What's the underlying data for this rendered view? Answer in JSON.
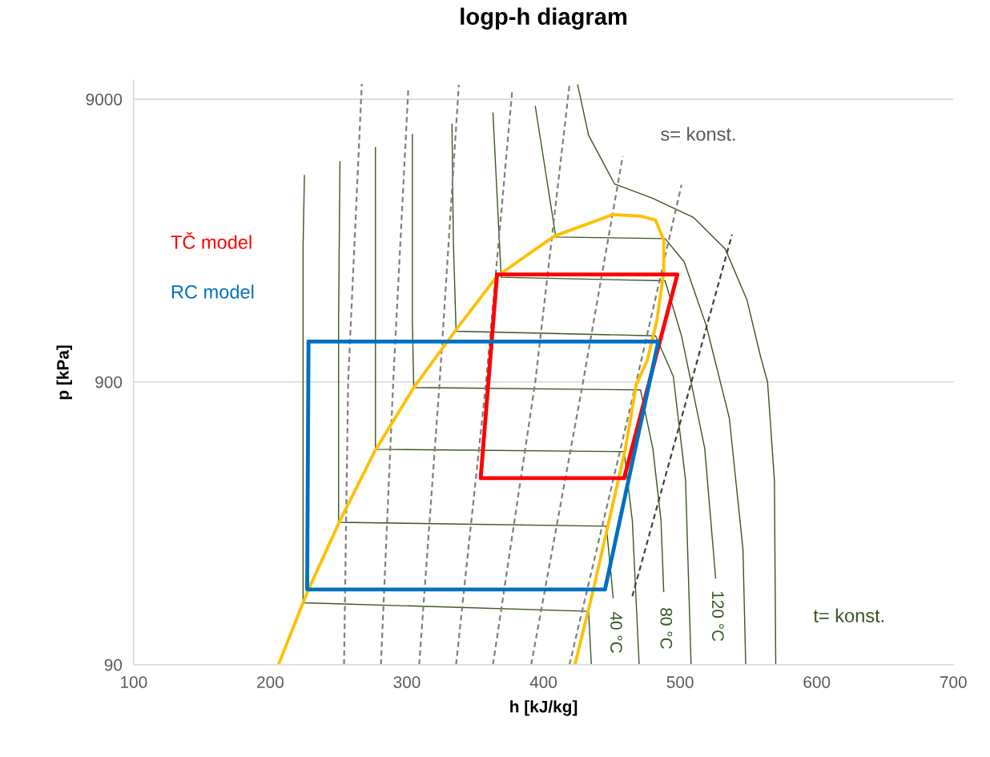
{
  "chart_data": {
    "type": "line",
    "title": "logp-h diagram",
    "xlabel": "h [kJ/kg]",
    "ylabel": "p [kPa]",
    "xlim": [
      100,
      700
    ],
    "xticks": [
      100,
      200,
      300,
      400,
      500,
      600,
      700
    ],
    "ylim": [
      90,
      10500
    ],
    "yticks": [
      90,
      900,
      9000
    ],
    "log": "y",
    "grid": "y",
    "legend": false,
    "series": [
      {
        "color": "#375623",
        "line_style": "solid",
        "x": [
          225,
          224,
          224,
          433,
          435
        ],
        "values": [
          4840,
          2690,
          149,
          139,
          90
        ]
      },
      {
        "color": "#375623",
        "line_style": "solid",
        "x": [
          251,
          250,
          250,
          446,
          451
        ],
        "values": [
          5410,
          1490,
          287,
          278,
          155
        ]
      },
      {
        "color": "#375623",
        "line_style": "solid",
        "x": [
          277,
          277,
          277,
          459,
          465,
          470
        ],
        "values": [
          6080,
          1490,
          520,
          510,
          291,
          90
        ]
      },
      {
        "color": "#375623",
        "line_style": "solid",
        "x": [
          304,
          304,
          305,
          471,
          480,
          486,
          488
        ],
        "values": [
          6760,
          1490,
          860,
          843,
          524,
          291,
          163
        ]
      },
      {
        "color": "#375623",
        "line_style": "solid",
        "x": [
          333,
          334,
          336,
          482,
          495,
          504,
          508
        ],
        "values": [
          7350,
          2860,
          1360,
          1310,
          942,
          403,
          90
        ]
      },
      {
        "color": "#375623",
        "line_style": "solid",
        "x": [
          363,
          369,
          489,
          501,
          518,
          526
        ],
        "values": [
          8050,
          2110,
          2050,
          1310,
          524,
          182
        ]
      },
      {
        "color": "#375623",
        "line_style": "solid",
        "x": [
          394,
          409,
          489,
          503,
          519,
          536,
          546,
          548
        ],
        "values": [
          8490,
          2930,
          2890,
          2390,
          1430,
          671,
          230,
          90
        ]
      },
      {
        "color": "#375623",
        "line_style": "solid",
        "x": [
          425,
          433,
          452,
          480,
          510,
          533,
          549,
          559,
          564,
          569,
          570
        ],
        "values": [
          10120,
          6710,
          4510,
          4010,
          3430,
          2660,
          1750,
          1100,
          900,
          403,
          90
        ]
      },
      {
        "color": "#7f7f7f",
        "line_style": "dashed",
        "x": [
          254,
          257,
          267
        ],
        "values": [
          90,
          903,
          10190
        ]
      },
      {
        "color": "#7f7f7f",
        "line_style": "dashed",
        "x": [
          281,
          290,
          301
        ],
        "values": [
          90,
          903,
          9730
        ]
      },
      {
        "color": "#7f7f7f",
        "line_style": "dashed",
        "x": [
          309,
          324,
          338
        ],
        "values": [
          90,
          903,
          10120
        ]
      },
      {
        "color": "#7f7f7f",
        "line_style": "dashed",
        "x": [
          336,
          358,
          377
        ],
        "values": [
          90,
          903,
          9550
        ]
      },
      {
        "color": "#7f7f7f",
        "line_style": "dashed",
        "x": [
          363,
          394,
          419
        ],
        "values": [
          90,
          903,
          10120
        ]
      },
      {
        "color": "#7f7f7f",
        "line_style": "dashed",
        "x": [
          391,
          429,
          458
        ],
        "values": [
          90,
          903,
          5660
        ]
      },
      {
        "color": "#7f7f7f",
        "line_style": "dashed",
        "x": [
          419,
          468,
          501
        ],
        "values": [
          90,
          903,
          4480
        ]
      },
      {
        "color": "#404040",
        "line_style": "dashed",
        "x": [
          465,
          538
        ],
        "values": [
          157,
          2990
        ]
      },
      {
        "color": "#ffc000",
        "line_style": "solid",
        "x": [
          206,
          227,
          251,
          277,
          305,
          336,
          366,
          408,
          451,
          471,
          482,
          488,
          488,
          483,
          476,
          468,
          460,
          448,
          436,
          423
        ],
        "values": [
          90,
          162,
          291,
          517,
          859,
          1377,
          2129,
          2952,
          3517,
          3472,
          3362,
          2855,
          2197,
          1487,
          1073,
          883,
          524,
          291,
          162,
          90
        ]
      },
      {
        "name": "TČ model",
        "color": "#ff0000",
        "line_style": "solid",
        "x": [
          366,
          498,
          459,
          354,
          366
        ],
        "values": [
          2160,
          2160,
          411,
          411,
          2160
        ]
      },
      {
        "name": "RC model",
        "color": "#0070c0",
        "line_style": "solid",
        "x": [
          228,
          484,
          445,
          227,
          228
        ],
        "values": [
          1250,
          1250,
          166,
          166,
          1250
        ]
      }
    ],
    "annotations": [
      "s= konst.",
      "40 °C",
      "80 °C",
      "120 °C",
      "t= konst."
    ]
  }
}
